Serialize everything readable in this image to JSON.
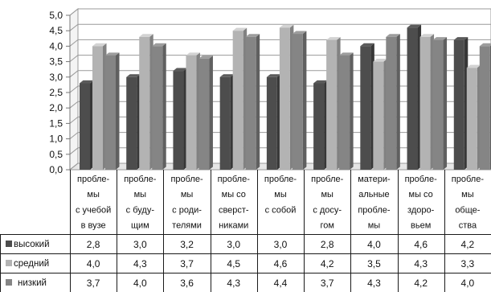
{
  "chart_data": {
    "type": "bar",
    "categories": [
      [
        "пробле-",
        "мы",
        "с учебой",
        "в вузе"
      ],
      [
        "пробле-",
        "мы",
        "с буду-",
        "щим"
      ],
      [
        "пробле-",
        "мы",
        "с роди-",
        "телями"
      ],
      [
        "пробле-",
        "мы со",
        "сверст-",
        "никами"
      ],
      [
        "пробле-",
        "мы",
        "с собой"
      ],
      [
        "пробле-",
        "мы",
        "с досу-",
        "гом"
      ],
      [
        "матери-",
        "альные",
        "пробле-",
        "мы"
      ],
      [
        "пробле-",
        "мы со",
        "здоро-",
        "вьем"
      ],
      [
        "пробле-",
        "мы",
        "обще-",
        "ства"
      ]
    ],
    "series": [
      {
        "name": "высокий",
        "color": "#4d4d4d",
        "values": [
          2.8,
          3.0,
          3.2,
          3.0,
          3.0,
          2.8,
          4.0,
          4.6,
          4.2
        ]
      },
      {
        "name": "средний",
        "color": "#b3b3b3",
        "values": [
          4.0,
          4.3,
          3.7,
          4.5,
          4.6,
          4.2,
          3.5,
          4.3,
          3.3
        ]
      },
      {
        "name": "низкий",
        "color": "#858585",
        "values": [
          3.7,
          4.0,
          3.6,
          4.3,
          4.4,
          3.7,
          4.3,
          4.2,
          4.0
        ]
      }
    ],
    "value_labels": [
      [
        "2,8",
        "3,0",
        "3,2",
        "3,0",
        "3,0",
        "2,8",
        "4,0",
        "4,6",
        "4,2"
      ],
      [
        "4,0",
        "4,3",
        "3,7",
        "4,5",
        "4,6",
        "4,2",
        "3,5",
        "4,3",
        "3,3"
      ],
      [
        "3,7",
        "4,0",
        "3,6",
        "4,3",
        "4,4",
        "3,7",
        "4,3",
        "4,2",
        "4,0"
      ]
    ],
    "y_ticks": [
      "0,0",
      "0,5",
      "1,0",
      "1,5",
      "2,0",
      "2,5",
      "3,0",
      "3,5",
      "4,0",
      "4,5",
      "5,0"
    ],
    "ylim": [
      0,
      5
    ],
    "grid": true,
    "title": "",
    "xlabel": "",
    "ylabel": "",
    "legend": "data-table"
  }
}
